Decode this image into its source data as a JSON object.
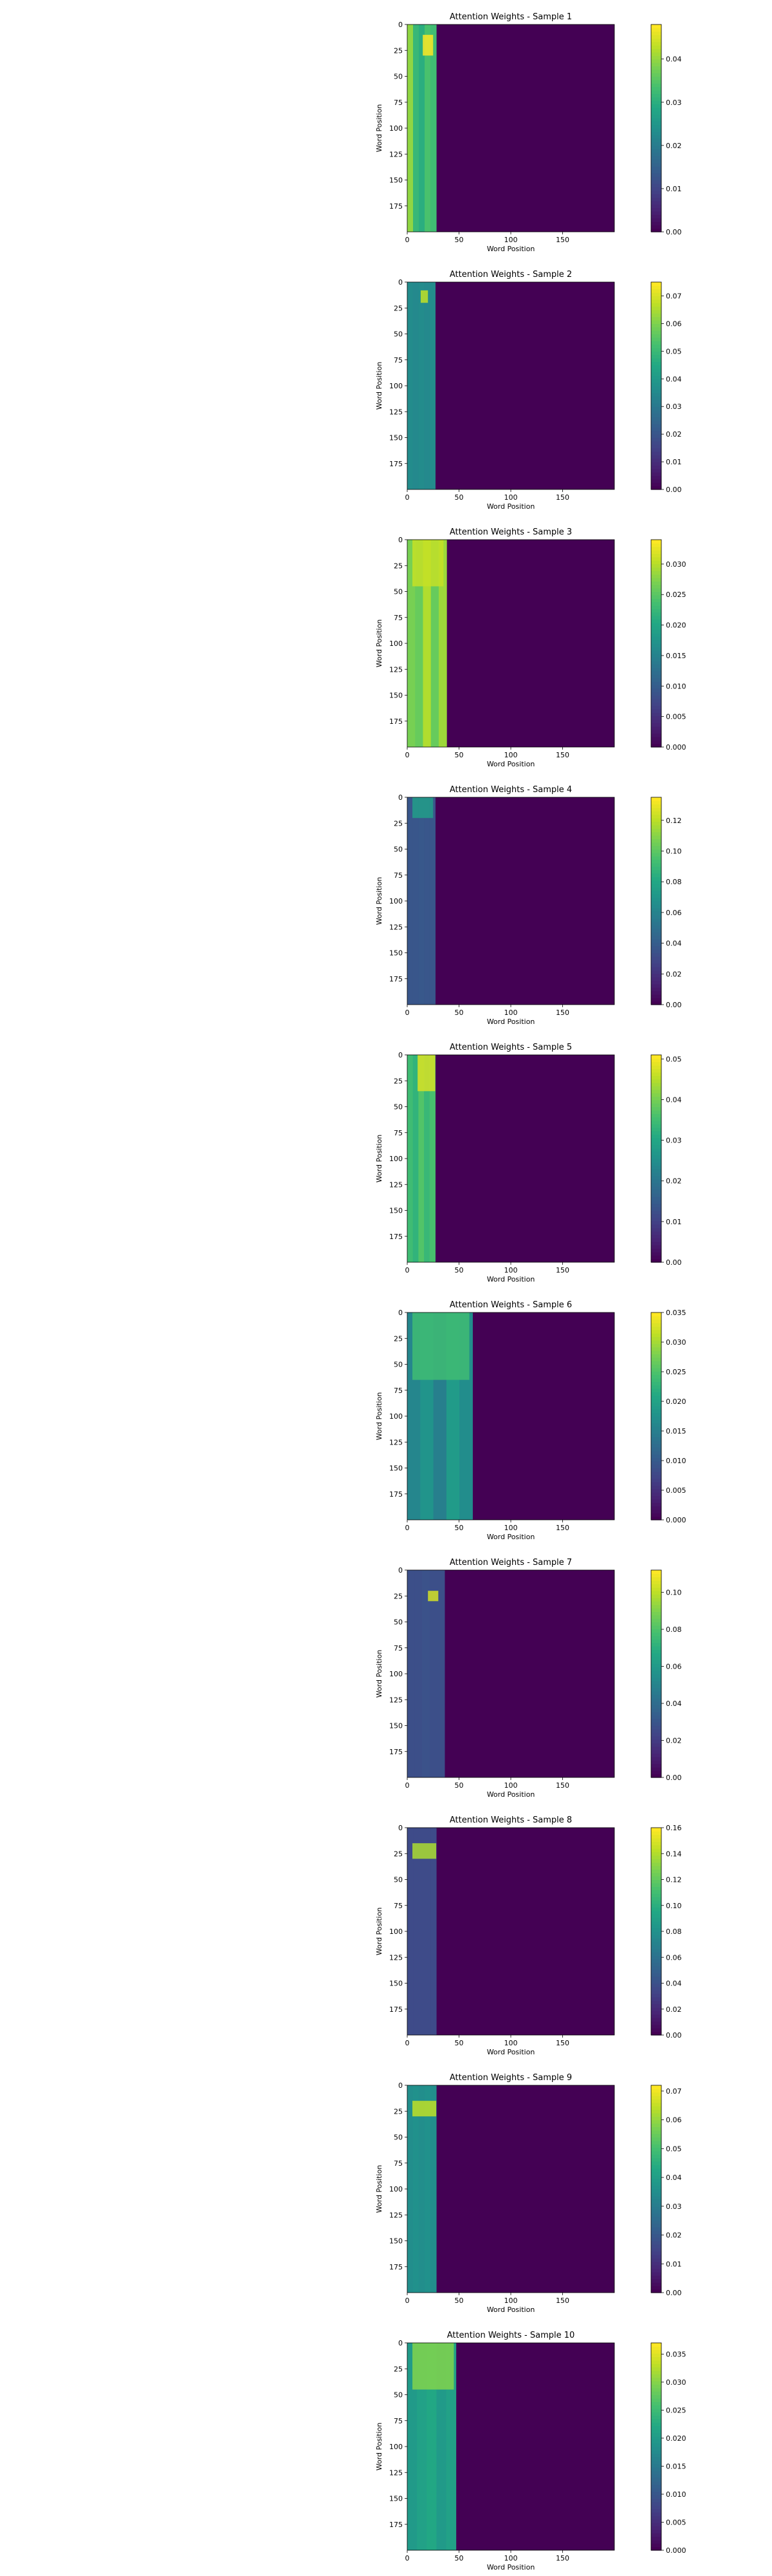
{
  "chart_data": [
    {
      "type": "heatmap",
      "title": "Attention Weights - Sample 1",
      "xlabel": "Word Position",
      "ylabel": "Word Position",
      "x_ticks": [
        0,
        50,
        100,
        150
      ],
      "y_ticks": [
        0,
        25,
        50,
        75,
        100,
        125,
        150,
        175
      ],
      "xlim": [
        0,
        200
      ],
      "ylim": [
        200,
        0
      ],
      "colorbar": {
        "min": 0,
        "max": 0.048,
        "ticks": [
          0,
          0.01,
          0.02,
          0.03,
          0.04
        ],
        "tick_labels": [
          "0.00",
          "0.01",
          "0.02",
          "0.03",
          "0.04"
        ]
      },
      "active_columns": 28,
      "background_value": 0,
      "column_band_values": [
        0.04,
        0.032,
        0.03,
        0.034,
        0.033
      ],
      "hotspot": {
        "x": [
          15,
          25
        ],
        "y": [
          10,
          30
        ],
        "value": 0.048
      }
    },
    {
      "type": "heatmap",
      "title": "Attention Weights - Sample 2",
      "xlabel": "Word Position",
      "ylabel": "Word Position",
      "x_ticks": [
        0,
        50,
        100,
        150
      ],
      "y_ticks": [
        0,
        25,
        50,
        75,
        100,
        125,
        150,
        175
      ],
      "xlim": [
        0,
        200
      ],
      "ylim": [
        200,
        0
      ],
      "colorbar": {
        "min": 0,
        "max": 0.075,
        "ticks": [
          0,
          0.01,
          0.02,
          0.03,
          0.04,
          0.05,
          0.06,
          0.07
        ],
        "tick_labels": [
          "0.00",
          "0.01",
          "0.02",
          "0.03",
          "0.04",
          "0.05",
          "0.06",
          "0.07"
        ]
      },
      "active_columns": 27,
      "background_value": 0,
      "column_band_values": [
        0.036,
        0.035,
        0.036,
        0.035,
        0.036
      ],
      "hotspot": {
        "x": [
          13,
          20
        ],
        "y": [
          8,
          20
        ],
        "value": 0.068
      }
    },
    {
      "type": "heatmap",
      "title": "Attention Weights - Sample 3",
      "xlabel": "Word Position",
      "ylabel": "Word Position",
      "x_ticks": [
        0,
        50,
        100,
        150
      ],
      "y_ticks": [
        0,
        25,
        50,
        75,
        100,
        125,
        150,
        175
      ],
      "xlim": [
        0,
        200
      ],
      "ylim": [
        200,
        0
      ],
      "colorbar": {
        "min": 0,
        "max": 0.034,
        "ticks": [
          0,
          0.005,
          0.01,
          0.015,
          0.02,
          0.025,
          0.03
        ],
        "tick_labels": [
          "0.000",
          "0.005",
          "0.010",
          "0.015",
          "0.020",
          "0.025",
          "0.030"
        ]
      },
      "active_columns": 38,
      "background_value": 0,
      "column_band_values": [
        0.027,
        0.026,
        0.03,
        0.026,
        0.029
      ],
      "hotspot": {
        "x": [
          5,
          35
        ],
        "y": [
          0,
          45
        ],
        "value": 0.031
      }
    },
    {
      "type": "heatmap",
      "title": "Attention Weights - Sample 4",
      "xlabel": "Word Position",
      "ylabel": "Word Position",
      "x_ticks": [
        0,
        50,
        100,
        150
      ],
      "y_ticks": [
        0,
        25,
        50,
        75,
        100,
        125,
        150,
        175
      ],
      "xlim": [
        0,
        200
      ],
      "ylim": [
        200,
        0
      ],
      "colorbar": {
        "min": 0,
        "max": 0.135,
        "ticks": [
          0,
          0.02,
          0.04,
          0.06,
          0.08,
          0.1,
          0.12
        ],
        "tick_labels": [
          "0.00",
          "0.02",
          "0.04",
          "0.06",
          "0.08",
          "0.10",
          "0.12"
        ]
      },
      "active_columns": 27,
      "background_value": 0,
      "column_band_values": [
        0.036,
        0.036,
        0.037,
        0.036,
        0.036
      ],
      "hotspot": {
        "x": [
          5,
          25
        ],
        "y": [
          0,
          20
        ],
        "value": 0.075
      }
    },
    {
      "type": "heatmap",
      "title": "Attention Weights - Sample 5",
      "xlabel": "Word Position",
      "ylabel": "Word Position",
      "x_ticks": [
        0,
        50,
        100,
        150
      ],
      "y_ticks": [
        0,
        25,
        50,
        75,
        100,
        125,
        150,
        175
      ],
      "xlim": [
        0,
        200
      ],
      "ylim": [
        200,
        0
      ],
      "colorbar": {
        "min": 0,
        "max": 0.051,
        "ticks": [
          0,
          0.01,
          0.02,
          0.03,
          0.04,
          0.05
        ],
        "tick_labels": [
          "0.00",
          "0.01",
          "0.02",
          "0.03",
          "0.04",
          "0.05"
        ]
      },
      "active_columns": 27,
      "background_value": 0,
      "column_band_values": [
        0.035,
        0.033,
        0.037,
        0.034,
        0.036
      ],
      "hotspot": {
        "x": [
          10,
          27
        ],
        "y": [
          0,
          35
        ],
        "value": 0.048
      }
    },
    {
      "type": "heatmap",
      "title": "Attention Weights - Sample 6",
      "xlabel": "Word Position",
      "ylabel": "Word Position",
      "x_ticks": [
        0,
        50,
        100,
        150
      ],
      "y_ticks": [
        0,
        25,
        50,
        75,
        100,
        125,
        150,
        175
      ],
      "xlim": [
        0,
        200
      ],
      "ylim": [
        200,
        0
      ],
      "colorbar": {
        "min": 0,
        "max": 0.035,
        "ticks": [
          0,
          0.005,
          0.01,
          0.015,
          0.02,
          0.025,
          0.03,
          0.035
        ],
        "tick_labels": [
          "0.000",
          "0.005",
          "0.010",
          "0.015",
          "0.020",
          "0.025",
          "0.030",
          "0.035"
        ]
      },
      "active_columns": 63,
      "background_value": 0,
      "column_band_values": [
        0.016,
        0.018,
        0.015,
        0.019,
        0.017
      ],
      "hotspot": {
        "x": [
          5,
          60
        ],
        "y": [
          0,
          65
        ],
        "value": 0.024
      }
    },
    {
      "type": "heatmap",
      "title": "Attention Weights - Sample 7",
      "xlabel": "Word Position",
      "ylabel": "Word Position",
      "x_ticks": [
        0,
        50,
        100,
        150
      ],
      "y_ticks": [
        0,
        25,
        50,
        75,
        100,
        125,
        150,
        175
      ],
      "xlim": [
        0,
        200
      ],
      "ylim": [
        200,
        0
      ],
      "colorbar": {
        "min": 0,
        "max": 0.112,
        "ticks": [
          0,
          0.02,
          0.04,
          0.06,
          0.08,
          0.1
        ],
        "tick_labels": [
          "0.00",
          "0.02",
          "0.04",
          "0.06",
          "0.08",
          "0.10"
        ]
      },
      "active_columns": 36,
      "background_value": 0,
      "column_band_values": [
        0.027,
        0.027,
        0.028,
        0.027,
        0.027
      ],
      "hotspot": {
        "x": [
          20,
          30
        ],
        "y": [
          20,
          30
        ],
        "value": 0.105
      }
    },
    {
      "type": "heatmap",
      "title": "Attention Weights - Sample 8",
      "xlabel": "Word Position",
      "ylabel": "Word Position",
      "x_ticks": [
        0,
        50,
        100,
        150
      ],
      "y_ticks": [
        0,
        25,
        50,
        75,
        100,
        125,
        150,
        175
      ],
      "xlim": [
        0,
        200
      ],
      "ylim": [
        200,
        0
      ],
      "colorbar": {
        "min": 0,
        "max": 0.16,
        "ticks": [
          0,
          0.02,
          0.04,
          0.06,
          0.08,
          0.1,
          0.12,
          0.14,
          0.16
        ],
        "tick_labels": [
          "0.00",
          "0.02",
          "0.04",
          "0.06",
          "0.08",
          "0.10",
          "0.12",
          "0.14",
          "0.16"
        ]
      },
      "active_columns": 28,
      "background_value": 0,
      "column_band_values": [
        0.036,
        0.036,
        0.036,
        0.036,
        0.036
      ],
      "hotspot": {
        "x": [
          5,
          28
        ],
        "y": [
          15,
          30
        ],
        "value": 0.14
      }
    },
    {
      "type": "heatmap",
      "title": "Attention Weights - Sample 9",
      "xlabel": "Word Position",
      "ylabel": "Word Position",
      "x_ticks": [
        0,
        50,
        100,
        150
      ],
      "y_ticks": [
        0,
        25,
        50,
        75,
        100,
        125,
        150,
        175
      ],
      "xlim": [
        0,
        200
      ],
      "ylim": [
        200,
        0
      ],
      "colorbar": {
        "min": 0,
        "max": 0.072,
        "ticks": [
          0,
          0.01,
          0.02,
          0.03,
          0.04,
          0.05,
          0.06,
          0.07
        ],
        "tick_labels": [
          "0.00",
          "0.01",
          "0.02",
          "0.03",
          "0.04",
          "0.05",
          "0.06",
          "0.07"
        ]
      },
      "active_columns": 28,
      "background_value": 0,
      "column_band_values": [
        0.035,
        0.036,
        0.035,
        0.036,
        0.035
      ],
      "hotspot": {
        "x": [
          5,
          28
        ],
        "y": [
          15,
          30
        ],
        "value": 0.065
      }
    },
    {
      "type": "heatmap",
      "title": "Attention Weights - Sample 10",
      "xlabel": "Word Position",
      "ylabel": "Word Position",
      "x_ticks": [
        0,
        50,
        100,
        150
      ],
      "y_ticks": [
        0,
        25,
        50,
        75,
        100,
        125,
        150,
        175
      ],
      "xlim": [
        0,
        200
      ],
      "ylim": [
        200,
        0
      ],
      "colorbar": {
        "min": 0,
        "max": 0.037,
        "ticks": [
          0,
          0.005,
          0.01,
          0.015,
          0.02,
          0.025,
          0.03,
          0.035
        ],
        "tick_labels": [
          "0.000",
          "0.005",
          "0.010",
          "0.015",
          "0.020",
          "0.025",
          "0.030",
          "0.035"
        ]
      },
      "active_columns": 47,
      "background_value": 0,
      "column_band_values": [
        0.02,
        0.021,
        0.022,
        0.02,
        0.021
      ],
      "hotspot": {
        "x": [
          5,
          45
        ],
        "y": [
          0,
          45
        ],
        "value": 0.03
      }
    }
  ],
  "colormap": "viridis"
}
